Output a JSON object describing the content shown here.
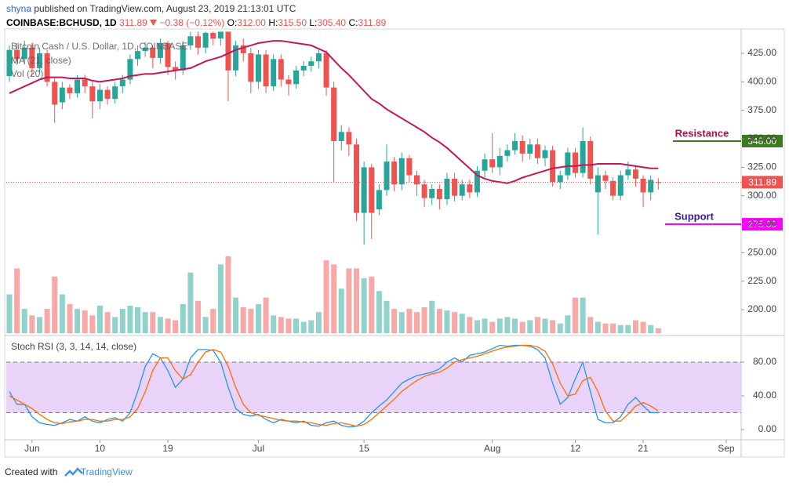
{
  "header": {
    "author": "shyna",
    "published": "published on TradingView.com, August 23, 2019 21:13:01 UTC",
    "symbol": "COINBASE:BCHUSD, 1D",
    "last": "311.89",
    "change": "−0.38 (−0.12%)",
    "ohlc": [
      {
        "label": "O:",
        "value": "312.00"
      },
      {
        "label": "H:",
        "value": "315.50"
      },
      {
        "label": "L:",
        "value": "305.40"
      },
      {
        "label": "C:",
        "value": "311.89"
      }
    ]
  },
  "chart_data": [
    {
      "type": "candlestick",
      "title": "Bitcoin Cash / U.S. Dollar, 1D, COINBASE",
      "open": [
        405,
        428,
        420,
        430,
        412,
        425,
        400,
        382,
        395,
        390,
        402,
        396,
        383,
        393,
        385,
        396,
        402,
        420,
        427,
        430,
        421,
        434,
        413,
        410,
        432,
        440,
        430,
        443,
        438,
        444,
        410,
        432,
        425,
        400,
        424,
        396,
        420,
        402,
        398,
        410,
        414,
        418,
        425,
        395,
        348,
        356,
        345,
        285,
        325,
        288,
        305,
        330,
        310,
        333,
        318,
        310,
        298,
        306,
        297,
        315,
        300,
        310,
        303,
        322,
        332,
        325,
        335,
        340,
        348,
        337,
        345,
        333,
        340,
        312,
        318,
        338,
        320,
        348,
        303,
        318,
        313,
        300,
        318,
        323,
        315,
        303,
        312
      ],
      "high": [
        432,
        434,
        436,
        434,
        430,
        428,
        404,
        400,
        398,
        406,
        406,
        400,
        398,
        396,
        400,
        406,
        424,
        432,
        435,
        432,
        438,
        436,
        418,
        436,
        444,
        444,
        444,
        444,
        444,
        444,
        436,
        438,
        430,
        428,
        428,
        424,
        424,
        406,
        414,
        418,
        422,
        428,
        428,
        400,
        362,
        360,
        350,
        330,
        328,
        310,
        345,
        334,
        338,
        336,
        322,
        314,
        310,
        310,
        320,
        320,
        314,
        314,
        326,
        337,
        355,
        342,
        345,
        355,
        353,
        350,
        350,
        344,
        344,
        322,
        342,
        342,
        360,
        352,
        325,
        322,
        316,
        322,
        330,
        326,
        318,
        318,
        315.5
      ],
      "low": [
        400,
        415,
        415,
        405,
        408,
        396,
        364,
        376,
        385,
        386,
        390,
        368,
        376,
        380,
        381,
        390,
        398,
        414,
        422,
        412,
        416,
        406,
        402,
        406,
        428,
        424,
        425,
        432,
        432,
        383,
        405,
        418,
        390,
        394,
        390,
        392,
        396,
        388,
        394,
        405,
        409,
        412,
        388,
        312,
        340,
        335,
        278,
        257,
        262,
        283,
        300,
        304,
        305,
        312,
        300,
        290,
        292,
        288,
        292,
        295,
        296,
        298,
        299,
        316,
        320,
        318,
        330,
        336,
        330,
        332,
        328,
        326,
        308,
        306,
        314,
        316,
        316,
        310,
        266,
        306,
        296,
        296,
        314,
        308,
        290,
        296,
        305.4
      ],
      "close": [
        428,
        420,
        430,
        412,
        425,
        400,
        380,
        395,
        390,
        402,
        396,
        383,
        393,
        385,
        396,
        402,
        420,
        427,
        430,
        421,
        434,
        413,
        410,
        432,
        440,
        430,
        443,
        438,
        444,
        410,
        432,
        425,
        400,
        424,
        396,
        420,
        402,
        398,
        410,
        414,
        418,
        425,
        395,
        348,
        356,
        345,
        285,
        325,
        285,
        305,
        330,
        310,
        333,
        318,
        310,
        298,
        306,
        297,
        315,
        300,
        310,
        303,
        322,
        332,
        325,
        335,
        340,
        348,
        337,
        345,
        333,
        340,
        312,
        318,
        338,
        320,
        348,
        315,
        318,
        313,
        300,
        318,
        323,
        315,
        303,
        314,
        311.89
      ],
      "up_color": "#26a69a",
      "down_color": "#ef5350",
      "ma": {
        "name": "MA (21, close)",
        "color": "#c2185b",
        "values": [
          390,
          393,
          396,
          399,
          402,
          404,
          404,
          404,
          403,
          403,
          403,
          401,
          400,
          401,
          402,
          403,
          405,
          406,
          407,
          407,
          408,
          409,
          410,
          411,
          412,
          415,
          418,
          420,
          422,
          425,
          428,
          430,
          432,
          434,
          435,
          436,
          436,
          435,
          434,
          433,
          432,
          429,
          426,
          419,
          412,
          406,
          399,
          392,
          385,
          381,
          376,
          372,
          368,
          364,
          360,
          356,
          351,
          347,
          342,
          336,
          330,
          324,
          318,
          315,
          313,
          312,
          311,
          313,
          316,
          318,
          320,
          322,
          324,
          325,
          326,
          326,
          327,
          327,
          328,
          328,
          328,
          328,
          327,
          326,
          325,
          324,
          324
        ]
      },
      "volume": {
        "name": "Vol (20)",
        "values": [
          48,
          80,
          30,
          22,
          20,
          30,
          70,
          48,
          36,
          30,
          28,
          22,
          34,
          26,
          20,
          30,
          34,
          32,
          26,
          26,
          20,
          18,
          16,
          36,
          75,
          40,
          20,
          30,
          85,
          95,
          44,
          32,
          30,
          36,
          44,
          22,
          20,
          18,
          18,
          14,
          16,
          26,
          90,
          85,
          55,
          80,
          80,
          68,
          70,
          52,
          40,
          30,
          26,
          30,
          26,
          32,
          40,
          30,
          28,
          26,
          24,
          20,
          16,
          18,
          14,
          18,
          20,
          18,
          14,
          16,
          20,
          18,
          16,
          12,
          22,
          44,
          44,
          20,
          14,
          12,
          12,
          10,
          10,
          16,
          14,
          10,
          6
        ]
      },
      "ylim": [
        179.4,
        444.3
      ],
      "yticks": [
        {
          "value": 200,
          "label": "200.00"
        },
        {
          "value": 225,
          "label": "225.00"
        },
        {
          "value": 250,
          "label": "250.00"
        },
        {
          "value": 275,
          "label": "275.00"
        },
        {
          "value": 300,
          "label": "300.00"
        },
        {
          "value": 325,
          "label": "325.00"
        },
        {
          "value": 350,
          "label": "350.00"
        },
        {
          "value": 375,
          "label": "375.00"
        },
        {
          "value": 400,
          "label": "400.00"
        },
        {
          "value": 425,
          "label": "425.00"
        }
      ],
      "last_price": {
        "value": 311.89,
        "label": "311.89",
        "color": "#ef5350"
      },
      "levels": [
        {
          "name": "Resistance",
          "value": 348,
          "label": "348.00",
          "color": "#3d7a1e",
          "text_color": "#a3124f"
        },
        {
          "name": "Support",
          "value": 275,
          "label": "275.00",
          "color": "#ff00ff",
          "text_color": "#3b1d8f"
        }
      ]
    },
    {
      "type": "line",
      "title": "Stoch RSI (3, 3, 14, 14, close)",
      "categories": [
        null,
        null,
        null,
        "Jun",
        null,
        null,
        null,
        null,
        null,
        null,
        null,
        null,
        "10",
        null,
        null,
        null,
        null,
        null,
        null,
        null,
        null,
        "19",
        null,
        null,
        null,
        null,
        null,
        null,
        null,
        null,
        null,
        null,
        null,
        "Jul",
        null,
        null,
        null,
        null,
        null,
        null,
        null,
        null,
        null,
        null,
        null,
        null,
        null,
        "15",
        null,
        null,
        null,
        null,
        null,
        null,
        null,
        null,
        null,
        null,
        null,
        null,
        null,
        null,
        null,
        null,
        "Aug",
        null,
        null,
        null,
        null,
        null,
        null,
        null,
        null,
        null,
        null,
        "12",
        null,
        null,
        null,
        null,
        null,
        null,
        null,
        null,
        "21",
        null,
        null,
        null,
        null,
        null,
        null,
        null,
        null,
        null,
        null,
        "Sep",
        null,
        null
      ],
      "series": [
        {
          "color": "#2196f3",
          "values": [
            45,
            30,
            30,
            15,
            8,
            6,
            5,
            8,
            12,
            10,
            15,
            10,
            8,
            12,
            14,
            10,
            20,
            45,
            75,
            90,
            85,
            70,
            50,
            60,
            85,
            95,
            95,
            94,
            80,
            50,
            25,
            18,
            16,
            18,
            12,
            8,
            12,
            10,
            8,
            10,
            5,
            4,
            8,
            10,
            5,
            3,
            4,
            10,
            20,
            28,
            35,
            45,
            55,
            60,
            64,
            66,
            68,
            72,
            80,
            85,
            80,
            88,
            90,
            92,
            96,
            100,
            99,
            100,
            100,
            99,
            95,
            85,
            55,
            30,
            38,
            60,
            80,
            45,
            12,
            8,
            8,
            15,
            30,
            38,
            28,
            20,
            20,
            null,
            null,
            null,
            null,
            null,
            null,
            null,
            null,
            null,
            null,
            null
          ]
        },
        {
          "color": "#ff6d00",
          "values": [
            40,
            35,
            30,
            25,
            18,
            12,
            8,
            7,
            9,
            10,
            12,
            12,
            10,
            10,
            12,
            12,
            15,
            25,
            45,
            70,
            85,
            85,
            70,
            60,
            65,
            80,
            92,
            95,
            92,
            75,
            50,
            30,
            20,
            17,
            15,
            13,
            11,
            10,
            10,
            9,
            8,
            6,
            5,
            7,
            8,
            6,
            4,
            6,
            12,
            20,
            28,
            36,
            45,
            52,
            58,
            63,
            66,
            68,
            73,
            80,
            83,
            85,
            87,
            90,
            93,
            96,
            98,
            99,
            100,
            100,
            98,
            93,
            78,
            55,
            40,
            42,
            58,
            62,
            45,
            22,
            10,
            10,
            18,
            28,
            32,
            28,
            22,
            null,
            null,
            null,
            null,
            null,
            null,
            null,
            null,
            null,
            null,
            null
          ]
        }
      ],
      "ylim": [
        -11.2,
        107.9
      ],
      "yticks": [
        {
          "value": 0,
          "label": "0.00"
        },
        {
          "value": 40,
          "label": "40.00"
        },
        {
          "value": 80,
          "label": "80.00"
        }
      ],
      "band": [
        20,
        80
      ],
      "band_color": "#e5c8f7"
    }
  ],
  "footer": {
    "text": "Created with",
    "brand": "TradingView"
  }
}
